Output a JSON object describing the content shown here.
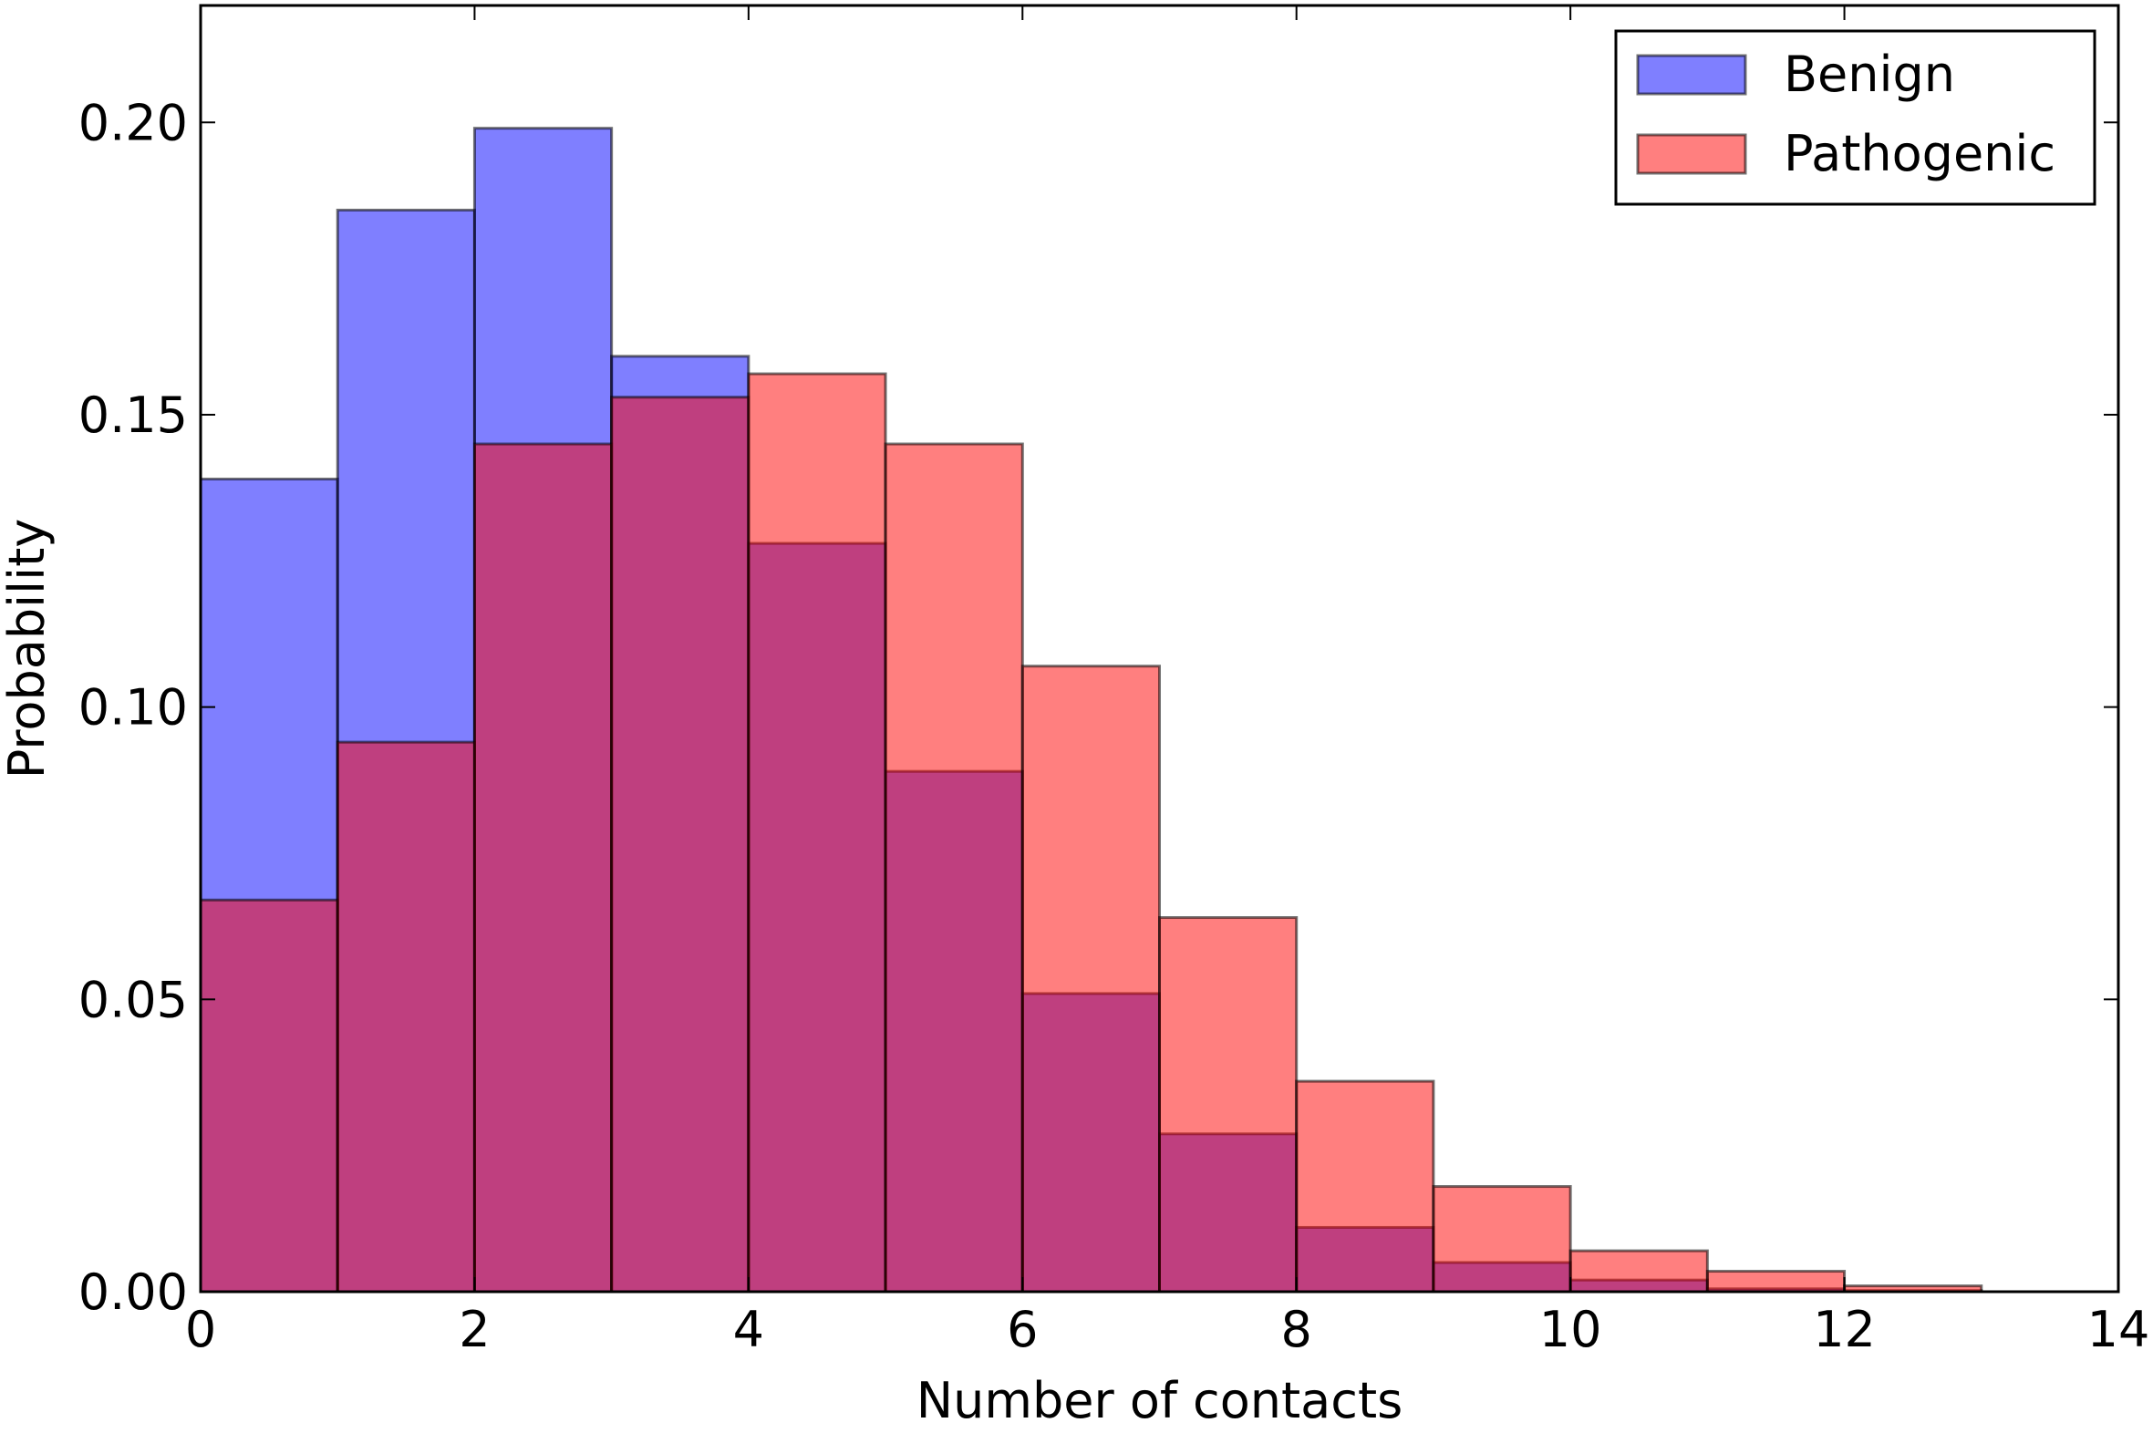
{
  "chart_data": {
    "type": "bar",
    "subtype": "overlapping-histogram",
    "bins": [
      0,
      1,
      2,
      3,
      4,
      5,
      6,
      7,
      8,
      9,
      10,
      11,
      12,
      13,
      14
    ],
    "series": [
      {
        "name": "Benign",
        "color": "#0000ff",
        "alpha": 0.5,
        "values": [
          0.139,
          0.185,
          0.199,
          0.16,
          0.128,
          0.089,
          0.051,
          0.027,
          0.011,
          0.005,
          0.002,
          0.0005,
          0.0002,
          0.0,
          0.0
        ]
      },
      {
        "name": "Pathogenic",
        "color": "#ff0000",
        "alpha": 0.5,
        "values": [
          0.067,
          0.094,
          0.145,
          0.153,
          0.157,
          0.145,
          0.107,
          0.064,
          0.036,
          0.018,
          0.007,
          0.0035,
          0.001,
          0.0,
          0.0
        ]
      }
    ],
    "title": "",
    "xlabel": "Number of contacts",
    "ylabel": "Probability",
    "xlim": [
      0,
      14
    ],
    "ylim": [
      0,
      0.22
    ],
    "xticks": [
      0,
      2,
      4,
      6,
      8,
      10,
      12,
      14
    ],
    "xtick_labels": [
      "0",
      "2",
      "4",
      "6",
      "8",
      "10",
      "12",
      "14"
    ],
    "yticks": [
      0.0,
      0.05,
      0.1,
      0.15,
      0.2
    ],
    "ytick_labels": [
      "0.00",
      "0.05",
      "0.10",
      "0.15",
      "0.20"
    ],
    "grid": false,
    "legend": "top-right"
  }
}
